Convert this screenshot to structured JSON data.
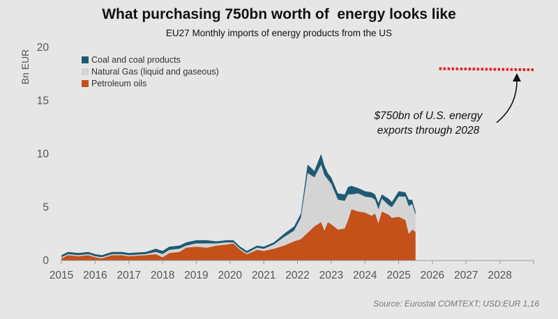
{
  "header": {
    "title": "What purchasing 750bn worth of  energy looks like",
    "subtitle": "EU27 Monthly imports of energy products from the US"
  },
  "source": "Source: Eurostat COMTEXT; USD:EUR 1,16",
  "colors": {
    "petroleum": "#c4501a",
    "gas": "#d4d4d4",
    "coal": "#1f5a74",
    "target": "#e8201c",
    "axis": "#999999"
  },
  "chart_data": {
    "type": "area",
    "stacked": true,
    "ylabel": "Bn EUR",
    "ylim": [
      0,
      20
    ],
    "yticks": [
      0,
      5,
      10,
      15,
      20
    ],
    "xlim": [
      2015,
      2029
    ],
    "xticks": [
      "2015",
      "2016",
      "2017",
      "2018",
      "2019",
      "2020",
      "2021",
      "2022",
      "2023",
      "2024",
      "2025",
      "2026",
      "2027",
      "2028"
    ],
    "legend": {
      "position": "top-left",
      "entries": [
        {
          "key": "coal",
          "label": "Coal and coal products"
        },
        {
          "key": "gas",
          "label": "Natural Gas (liquid and gaseous)"
        },
        {
          "key": "petroleum",
          "label": "Petroleum oils"
        }
      ]
    },
    "series": [
      {
        "key": "petroleum",
        "name": "Petroleum oils",
        "points": [
          [
            2015.0,
            0.2
          ],
          [
            2015.2,
            0.5
          ],
          [
            2015.5,
            0.4
          ],
          [
            2015.8,
            0.5
          ],
          [
            2016.0,
            0.3
          ],
          [
            2016.2,
            0.2
          ],
          [
            2016.5,
            0.5
          ],
          [
            2016.8,
            0.5
          ],
          [
            2017.0,
            0.4
          ],
          [
            2017.5,
            0.5
          ],
          [
            2017.8,
            0.6
          ],
          [
            2018.0,
            0.3
          ],
          [
            2018.2,
            0.7
          ],
          [
            2018.5,
            0.8
          ],
          [
            2018.7,
            1.2
          ],
          [
            2019.0,
            1.3
          ],
          [
            2019.3,
            1.2
          ],
          [
            2019.6,
            1.4
          ],
          [
            2019.9,
            1.5
          ],
          [
            2020.1,
            1.6
          ],
          [
            2020.3,
            1.0
          ],
          [
            2020.5,
            0.6
          ],
          [
            2020.8,
            1.0
          ],
          [
            2021.0,
            0.9
          ],
          [
            2021.3,
            1.1
          ],
          [
            2021.6,
            1.4
          ],
          [
            2021.9,
            1.8
          ],
          [
            2022.1,
            2.0
          ],
          [
            2022.3,
            2.6
          ],
          [
            2022.5,
            3.2
          ],
          [
            2022.7,
            3.6
          ],
          [
            2022.8,
            2.8
          ],
          [
            2022.9,
            3.6
          ],
          [
            2023.0,
            3.4
          ],
          [
            2023.2,
            2.9
          ],
          [
            2023.4,
            3.0
          ],
          [
            2023.5,
            3.8
          ],
          [
            2023.6,
            4.8
          ],
          [
            2023.8,
            4.6
          ],
          [
            2024.0,
            4.5
          ],
          [
            2024.2,
            4.2
          ],
          [
            2024.3,
            4.4
          ],
          [
            2024.4,
            3.5
          ],
          [
            2024.5,
            4.6
          ],
          [
            2024.7,
            4.3
          ],
          [
            2024.8,
            4.0
          ],
          [
            2025.0,
            4.1
          ],
          [
            2025.2,
            3.8
          ],
          [
            2025.3,
            2.5
          ],
          [
            2025.4,
            2.9
          ],
          [
            2025.5,
            2.7
          ]
        ]
      },
      {
        "key": "gas",
        "name": "Natural Gas (liquid and gaseous)",
        "points": [
          [
            2015.0,
            0.1
          ],
          [
            2015.2,
            0.1
          ],
          [
            2015.5,
            0.1
          ],
          [
            2015.8,
            0.1
          ],
          [
            2016.0,
            0.1
          ],
          [
            2016.2,
            0.1
          ],
          [
            2016.5,
            0.1
          ],
          [
            2016.8,
            0.1
          ],
          [
            2017.0,
            0.1
          ],
          [
            2017.5,
            0.1
          ],
          [
            2017.8,
            0.2
          ],
          [
            2018.0,
            0.3
          ],
          [
            2018.2,
            0.3
          ],
          [
            2018.5,
            0.3
          ],
          [
            2018.7,
            0.2
          ],
          [
            2019.0,
            0.3
          ],
          [
            2019.3,
            0.4
          ],
          [
            2019.6,
            0.2
          ],
          [
            2019.9,
            0.2
          ],
          [
            2020.1,
            0.1
          ],
          [
            2020.3,
            0.1
          ],
          [
            2020.5,
            0.1
          ],
          [
            2020.8,
            0.2
          ],
          [
            2021.0,
            0.2
          ],
          [
            2021.3,
            0.4
          ],
          [
            2021.6,
            0.8
          ],
          [
            2021.9,
            1.0
          ],
          [
            2022.1,
            2.0
          ],
          [
            2022.3,
            5.6
          ],
          [
            2022.5,
            4.6
          ],
          [
            2022.7,
            5.4
          ],
          [
            2022.8,
            5.2
          ],
          [
            2022.9,
            4.0
          ],
          [
            2023.0,
            3.8
          ],
          [
            2023.2,
            2.8
          ],
          [
            2023.4,
            2.6
          ],
          [
            2023.5,
            2.4
          ],
          [
            2023.6,
            1.4
          ],
          [
            2023.8,
            1.7
          ],
          [
            2024.0,
            1.5
          ],
          [
            2024.2,
            1.7
          ],
          [
            2024.3,
            1.3
          ],
          [
            2024.4,
            1.3
          ],
          [
            2024.5,
            1.2
          ],
          [
            2024.7,
            0.9
          ],
          [
            2024.8,
            1.0
          ],
          [
            2025.0,
            1.9
          ],
          [
            2025.2,
            2.2
          ],
          [
            2025.3,
            2.6
          ],
          [
            2025.4,
            2.4
          ],
          [
            2025.5,
            1.6
          ]
        ]
      },
      {
        "key": "coal",
        "name": "Coal and coal products",
        "points": [
          [
            2015.0,
            0.2
          ],
          [
            2015.2,
            0.2
          ],
          [
            2015.5,
            0.2
          ],
          [
            2015.8,
            0.2
          ],
          [
            2016.0,
            0.2
          ],
          [
            2016.2,
            0.2
          ],
          [
            2016.5,
            0.2
          ],
          [
            2016.8,
            0.2
          ],
          [
            2017.0,
            0.2
          ],
          [
            2017.5,
            0.2
          ],
          [
            2017.8,
            0.3
          ],
          [
            2018.0,
            0.3
          ],
          [
            2018.2,
            0.3
          ],
          [
            2018.5,
            0.3
          ],
          [
            2018.7,
            0.3
          ],
          [
            2019.0,
            0.3
          ],
          [
            2019.3,
            0.3
          ],
          [
            2019.6,
            0.2
          ],
          [
            2019.9,
            0.2
          ],
          [
            2020.1,
            0.2
          ],
          [
            2020.3,
            0.2
          ],
          [
            2020.5,
            0.2
          ],
          [
            2020.8,
            0.2
          ],
          [
            2021.0,
            0.2
          ],
          [
            2021.3,
            0.2
          ],
          [
            2021.6,
            0.3
          ],
          [
            2021.9,
            0.4
          ],
          [
            2022.1,
            0.4
          ],
          [
            2022.3,
            0.8
          ],
          [
            2022.5,
            0.6
          ],
          [
            2022.7,
            1.0
          ],
          [
            2022.8,
            0.9
          ],
          [
            2022.9,
            0.6
          ],
          [
            2023.0,
            0.6
          ],
          [
            2023.2,
            0.6
          ],
          [
            2023.4,
            0.6
          ],
          [
            2023.5,
            0.7
          ],
          [
            2023.6,
            0.8
          ],
          [
            2023.8,
            0.5
          ],
          [
            2024.0,
            0.5
          ],
          [
            2024.2,
            0.5
          ],
          [
            2024.3,
            0.5
          ],
          [
            2024.4,
            0.6
          ],
          [
            2024.5,
            0.4
          ],
          [
            2024.7,
            0.6
          ],
          [
            2024.8,
            0.5
          ],
          [
            2025.0,
            0.5
          ],
          [
            2025.2,
            0.4
          ],
          [
            2025.3,
            0.6
          ],
          [
            2025.4,
            0.4
          ],
          [
            2025.5,
            0.3
          ]
        ]
      }
    ],
    "target": {
      "label_line1": "$750bn of U.S. energy",
      "label_line2": "exports through 2028",
      "x_start": 2026.2,
      "x_end": 2029,
      "y_start": 18.0,
      "y_end": 17.9
    }
  }
}
